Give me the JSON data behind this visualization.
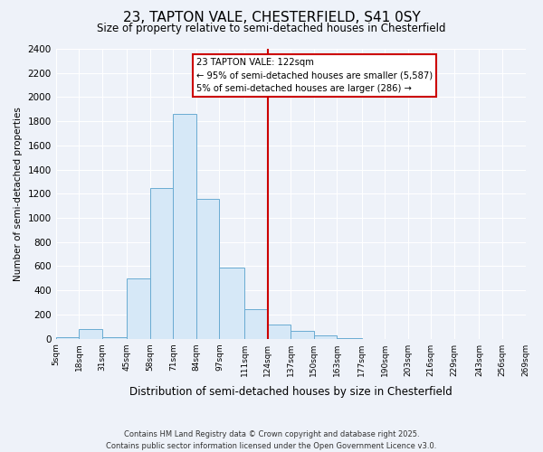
{
  "title": "23, TAPTON VALE, CHESTERFIELD, S41 0SY",
  "subtitle": "Size of property relative to semi-detached houses in Chesterfield",
  "xlabel": "Distribution of semi-detached houses by size in Chesterfield",
  "ylabel": "Number of semi-detached properties",
  "bar_edges": [
    5,
    18,
    31,
    45,
    58,
    71,
    84,
    97,
    111,
    124,
    137,
    150,
    163,
    177,
    190,
    203,
    216,
    229,
    243,
    256,
    269
  ],
  "bar_heights": [
    10,
    80,
    10,
    500,
    1250,
    1860,
    1155,
    590,
    245,
    120,
    65,
    30,
    5,
    0,
    0,
    0,
    0,
    0,
    0,
    0
  ],
  "bar_color": "#d6e8f7",
  "bar_edge_color": "#6aabd2",
  "vline_x": 124,
  "vline_color": "#cc0000",
  "annotation_line1": "23 TAPTON VALE: 122sqm",
  "annotation_line2": "← 95% of semi-detached houses are smaller (5,587)",
  "annotation_line3": "5% of semi-detached houses are larger (286) →",
  "annotation_box_edge_color": "#cc0000",
  "ylim": [
    0,
    2400
  ],
  "yticks": [
    0,
    200,
    400,
    600,
    800,
    1000,
    1200,
    1400,
    1600,
    1800,
    2000,
    2200,
    2400
  ],
  "bg_color": "#eef2f9",
  "grid_color": "#ffffff",
  "footer_line1": "Contains HM Land Registry data © Crown copyright and database right 2025.",
  "footer_line2": "Contains public sector information licensed under the Open Government Licence v3.0.",
  "tick_labels": [
    "5sqm",
    "18sqm",
    "31sqm",
    "45sqm",
    "58sqm",
    "71sqm",
    "84sqm",
    "97sqm",
    "111sqm",
    "124sqm",
    "137sqm",
    "150sqm",
    "163sqm",
    "177sqm",
    "190sqm",
    "203sqm",
    "216sqm",
    "229sqm",
    "243sqm",
    "256sqm",
    "269sqm"
  ]
}
